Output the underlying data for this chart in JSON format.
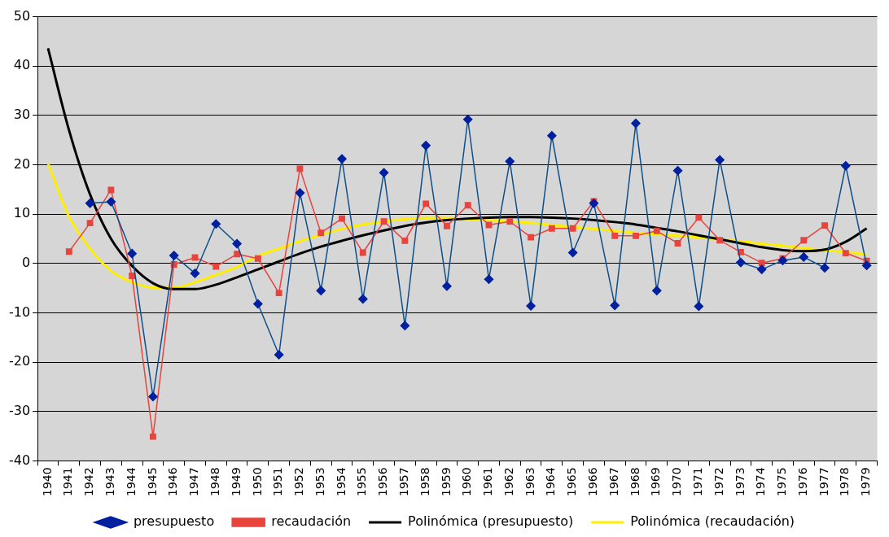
{
  "chart_data": {
    "type": "line",
    "categories": [
      "1940",
      "1941",
      "1942",
      "1943",
      "1944",
      "1945",
      "1946",
      "1947",
      "1948",
      "1949",
      "1950",
      "1951",
      "1952",
      "1953",
      "1954",
      "1955",
      "1956",
      "1957",
      "1958",
      "1959",
      "1960",
      "1961",
      "1962",
      "1963",
      "1964",
      "1965",
      "1966",
      "1967",
      "1968",
      "1969",
      "1970",
      "1971",
      "1972",
      "1973",
      "1974",
      "1975",
      "1976",
      "1977",
      "1978",
      "1979"
    ],
    "ylim": [
      -40,
      50
    ],
    "yticks": [
      -40,
      -30,
      -20,
      -10,
      0,
      10,
      20,
      30,
      40,
      50
    ],
    "grid": "y",
    "legend": "bottom",
    "series": [
      {
        "name": "presupuesto",
        "color": "#0d4f8b",
        "marker": "diamond",
        "values": [
          null,
          null,
          12.2,
          12.5,
          2,
          -27,
          1.6,
          -2,
          8,
          4,
          -8.2,
          -18.5,
          14.3,
          -5.5,
          21.2,
          -7.2,
          18.4,
          -12.6,
          23.9,
          -4.6,
          29.2,
          -3.2,
          20.7,
          -8.6,
          25.9,
          2.2,
          12.2,
          -8.5,
          28.4,
          -5.5,
          18.8,
          -8.7,
          21,
          0.2,
          -1.2,
          0.6,
          1.3,
          -0.9,
          19.8,
          -0.4
        ]
      },
      {
        "name": "recaudación",
        "color": "#e8443e",
        "marker": "square",
        "values": [
          null,
          2.4,
          8.2,
          14.9,
          -2.5,
          -35.1,
          -0.2,
          1.2,
          -0.6,
          1.9,
          1,
          -6,
          19.2,
          6.2,
          9.1,
          2.2,
          8.5,
          4.6,
          12.1,
          7.6,
          11.8,
          7.8,
          8.5,
          5.3,
          7.1,
          7.1,
          12.6,
          5.6,
          5.6,
          6.6,
          4.1,
          9.3,
          4.7,
          2.3,
          0.1,
          1,
          4.7,
          7.7,
          2.1,
          0.5
        ]
      },
      {
        "name": "Polinómica (presupuesto)",
        "color": "#000000",
        "marker": "none",
        "values": [
          43.6,
          27,
          14,
          5,
          -0.5,
          -4,
          -5.2,
          -5.2,
          -4.3,
          -2.8,
          -1.2,
          0.4,
          2,
          3.4,
          4.6,
          5.7,
          6.7,
          7.6,
          8.3,
          8.8,
          9.1,
          9.3,
          9.4,
          9.4,
          9.3,
          9.1,
          8.8,
          8.4,
          7.9,
          7.2,
          6.5,
          5.7,
          4.9,
          4.1,
          3.3,
          2.7,
          2.5,
          2.8,
          4.4,
          7.1
        ]
      },
      {
        "name": "Polinómica (recaudación)",
        "color": "#ffee00",
        "marker": "none",
        "values": [
          20.3,
          9.5,
          3,
          -1.5,
          -3.8,
          -4.9,
          -4.9,
          -3.8,
          -2.3,
          -0.7,
          1.5,
          3,
          4.5,
          5.8,
          7,
          7.9,
          8.5,
          9,
          9.2,
          9.2,
          9,
          8.8,
          8.5,
          8.2,
          7.8,
          7.4,
          7,
          6.6,
          6.2,
          5.9,
          5.6,
          5.3,
          4.9,
          4.5,
          4,
          3.6,
          3.1,
          2.7,
          2.3,
          1.8
        ]
      }
    ]
  }
}
